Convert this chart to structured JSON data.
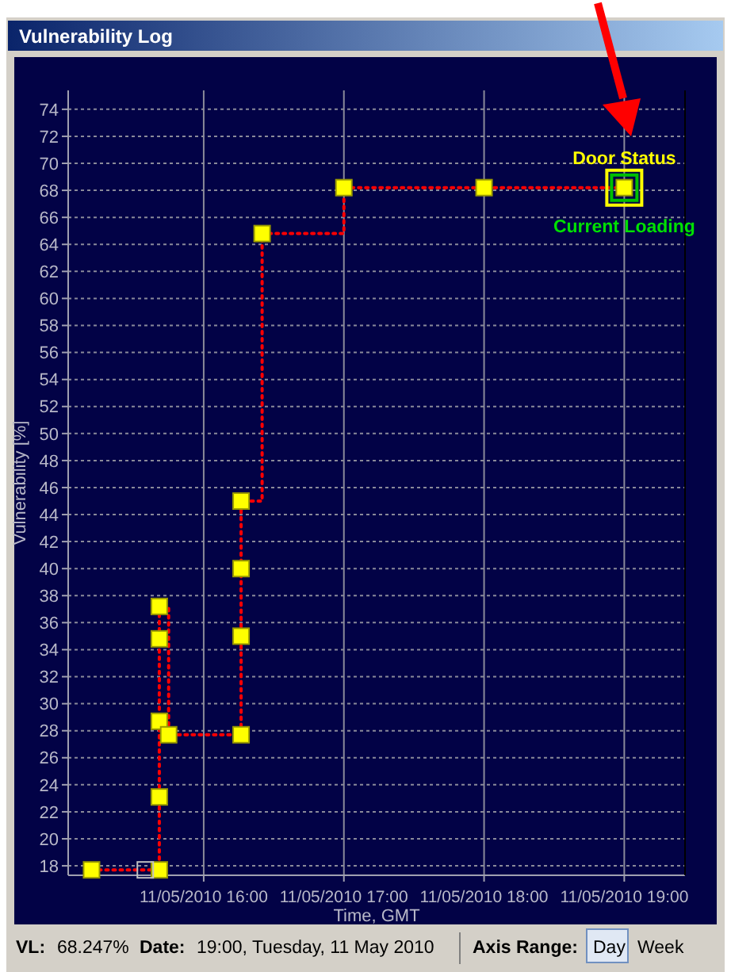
{
  "chart_data": {
    "type": "step",
    "title": "Vulnerability Log",
    "xlabel": "Time, GMT",
    "ylabel": "Vulnerability [%]",
    "xlim": [
      "2010-05-11T15:02",
      "2010-05-11T19:26"
    ],
    "xticks": [
      {
        "value": "2010-05-11T16:00",
        "label": "11/05/2010 16:00"
      },
      {
        "value": "2010-05-11T17:00",
        "label": "11/05/2010 17:00"
      },
      {
        "value": "2010-05-11T18:00",
        "label": "11/05/2010 18:00"
      },
      {
        "value": "2010-05-11T19:00",
        "label": "11/05/2010 19:00"
      }
    ],
    "ylim": [
      17.3,
      75.4
    ],
    "yticks": [
      18,
      20,
      22,
      24,
      26,
      28,
      30,
      32,
      34,
      36,
      38,
      40,
      42,
      44,
      46,
      48,
      50,
      52,
      54,
      56,
      58,
      60,
      62,
      64,
      66,
      68,
      70,
      72,
      74
    ],
    "grid": true,
    "series": [
      {
        "color": "#ff0000",
        "line_style": "dotted",
        "marker": "none",
        "x": [
          "2010-05-11T15:12",
          "2010-05-11T15:41",
          "2010-05-11T15:41",
          "2010-05-11T15:41",
          "2010-05-11T15:41",
          "2010-05-11T15:41",
          "2010-05-11T15:45",
          "2010-05-11T16:16",
          "2010-05-11T16:16",
          "2010-05-11T16:16",
          "2010-05-11T16:16",
          "2010-05-11T16:25",
          "2010-05-11T17:00",
          "2010-05-11T18:00",
          "2010-05-11T19:00"
        ],
        "values": [
          17.7,
          17.7,
          23.1,
          28.7,
          34.8,
          37.2,
          27.7,
          27.7,
          35,
          40,
          45,
          64.8,
          68.2,
          68.2,
          68.2
        ]
      },
      {
        "type": "scatter",
        "color": "#ffff00",
        "marker": "square",
        "x": [
          "2010-05-11T15:12",
          "2010-05-11T15:41",
          "2010-05-11T15:41",
          "2010-05-11T15:41",
          "2010-05-11T15:41",
          "2010-05-11T15:41",
          "2010-05-11T15:45",
          "2010-05-11T16:16",
          "2010-05-11T16:16",
          "2010-05-11T16:16",
          "2010-05-11T16:16",
          "2010-05-11T16:25",
          "2010-05-11T17:00",
          "2010-05-11T18:00",
          "2010-05-11T19:00"
        ],
        "values": [
          17.7,
          17.7,
          23.1,
          28.7,
          34.8,
          37.2,
          27.7,
          27.7,
          35,
          40,
          45,
          64.8,
          68.2,
          68.2,
          68.2
        ]
      },
      {
        "type": "scatter",
        "color": "#c0c0c0",
        "marker": "square",
        "x": [
          "2010-05-11T15:35"
        ],
        "values": [
          17.7
        ]
      }
    ],
    "annotations": [
      {
        "text": "Door Status",
        "x": "2010-05-11T19:00",
        "y": 68.2
      },
      {
        "text": "Current Loading",
        "x": "2010-05-11T19:00",
        "y": 68.2
      },
      "VL:",
      "68.247%",
      "Date:",
      "19:00, Tuesday, 11 May 2010",
      "Axis Range:",
      "Day",
      "Week"
    ]
  }
}
